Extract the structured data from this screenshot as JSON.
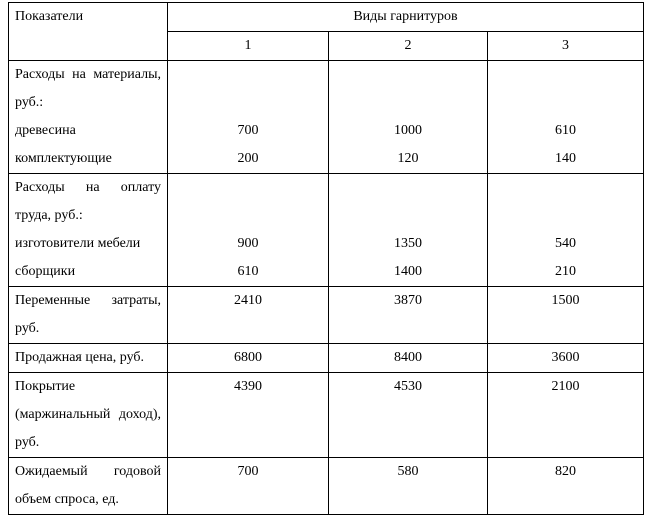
{
  "table": {
    "header": {
      "label": "Показатели",
      "group": "Виды гарнитуров",
      "columns": [
        "1",
        "2",
        "3"
      ]
    },
    "rows": [
      {
        "label": "Расходы на материалы, руб.:",
        "items": [
          {
            "label": "древесина",
            "values": [
              700,
              1000,
              610
            ]
          },
          {
            "label": "комплектующие",
            "values": [
              200,
              120,
              140
            ]
          }
        ]
      },
      {
        "label": "Расходы на оплату труда, руб.:",
        "items": [
          {
            "label": "изготовители мебели",
            "values": [
              900,
              1350,
              540
            ]
          },
          {
            "label": "сборщики",
            "values": [
              610,
              1400,
              210
            ]
          }
        ]
      },
      {
        "label": "Переменные затраты, руб.",
        "values": [
          2410,
          3870,
          1500
        ]
      },
      {
        "label": "Продажная цена, руб.",
        "values": [
          6800,
          8400,
          3600
        ]
      },
      {
        "label": "Покрытие (маржинальный доход), руб.",
        "values": [
          4390,
          4530,
          2100
        ]
      },
      {
        "label": "Ожидаемый годовой объем спроса, ед.",
        "values": [
          700,
          580,
          820
        ]
      }
    ]
  }
}
